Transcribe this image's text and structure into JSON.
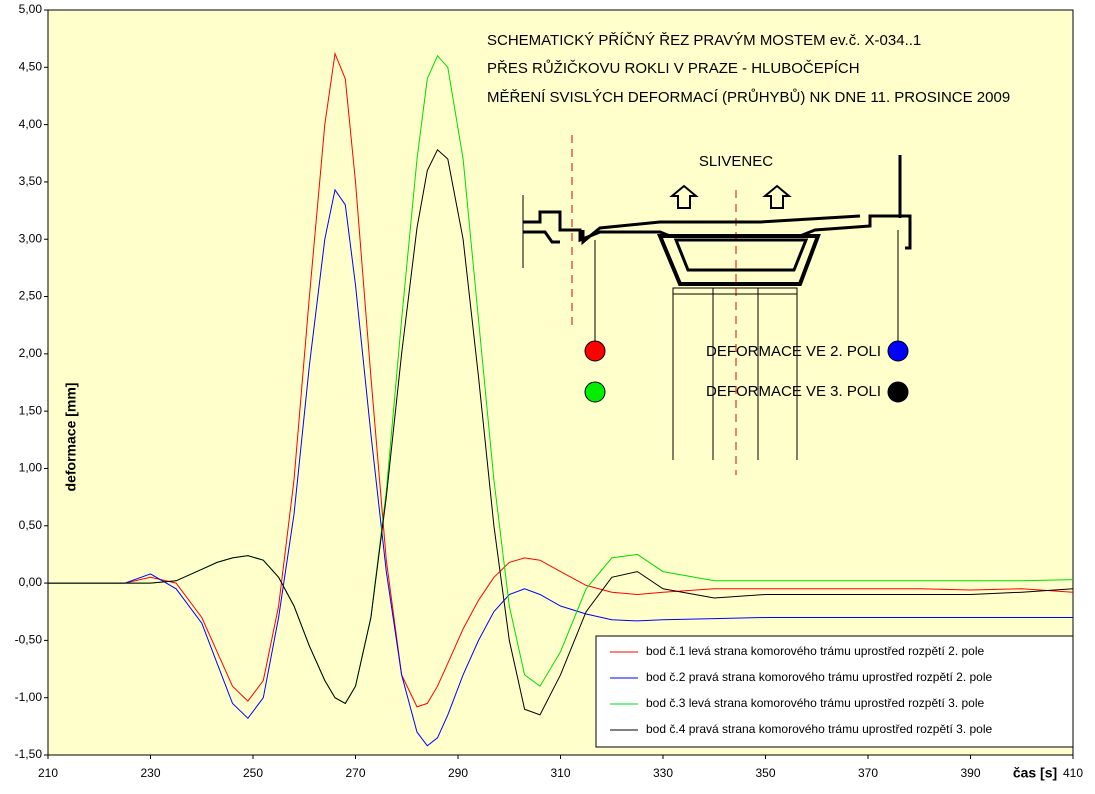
{
  "chart_data": {
    "type": "line",
    "title": [
      "SCHEMATICKÝ PŘÍČNÝ ŘEZ PRAVÝM MOSTEM ev.č. X-034..1",
      "PŘES RŮŽIČKOVU ROKLI V PRAZE - HLUBOČEPÍCH",
      "MĚŘENÍ SVISLÝCH DEFORMACÍ (PRŮHYBŮ) NK DNE 11. PROSINCE 2009"
    ],
    "annotations": [
      "SLIVENEC",
      "DEFORMACE VE 2. POLI",
      "DEFORMACE VE 3. POLI"
    ],
    "x_label": "čas [s]",
    "y_label": "deformace [mm]",
    "xlim": [
      210,
      410
    ],
    "xticks": [
      210,
      230,
      250,
      270,
      290,
      310,
      330,
      350,
      370,
      390,
      410
    ],
    "ylim": [
      -1.5,
      5
    ],
    "yticks": [
      {
        "value": -1.5,
        "label": "-1,50"
      },
      {
        "value": -1,
        "label": "-1,00"
      },
      {
        "value": -0.5,
        "label": "-0,50"
      },
      {
        "value": 0,
        "label": "0,00"
      },
      {
        "value": 0.5,
        "label": "0,50"
      },
      {
        "value": 1,
        "label": "1,00"
      },
      {
        "value": 1.5,
        "label": "1,50"
      },
      {
        "value": 2,
        "label": "2,00"
      },
      {
        "value": 2.5,
        "label": "2,50"
      },
      {
        "value": 3,
        "label": "3,00"
      },
      {
        "value": 3.5,
        "label": "3,50"
      },
      {
        "value": 4,
        "label": "4,00"
      },
      {
        "value": 4.5,
        "label": "4,50"
      },
      {
        "value": 5,
        "label": "5,00"
      }
    ],
    "grid": false,
    "legend": "lower right",
    "background": "#ffffcc",
    "x": [
      210,
      215,
      220,
      225,
      230,
      235,
      240,
      243,
      246,
      249,
      252,
      255,
      258,
      261,
      264,
      266,
      268,
      270,
      273,
      276,
      279,
      282,
      284,
      286,
      288,
      291,
      294,
      297,
      300,
      303,
      306,
      310,
      315,
      320,
      325,
      330,
      340,
      350,
      360,
      370,
      380,
      390,
      400,
      410
    ],
    "series": [
      {
        "name": "bod č.1 levá strana komorového trámu uprostřed rozpětí 2. pole",
        "color": "#ff0000",
        "values": [
          0,
          0,
          0,
          0,
          0.05,
          0,
          -0.3,
          -0.6,
          -0.9,
          -1.03,
          -0.85,
          -0.2,
          0.9,
          2.5,
          4.0,
          4.62,
          4.4,
          3.5,
          1.8,
          0.2,
          -0.8,
          -1.08,
          -1.05,
          -0.9,
          -0.7,
          -0.4,
          -0.15,
          0.05,
          0.18,
          0.22,
          0.2,
          0.1,
          -0.02,
          -0.08,
          -0.1,
          -0.08,
          -0.05,
          -0.05,
          -0.05,
          -0.05,
          -0.05,
          -0.06,
          -0.05,
          -0.08
        ]
      },
      {
        "name": "bod č.2 pravá strana komorového trámu uprostřed rozpětí 2. pole",
        "color": "#0000ff",
        "values": [
          0,
          0,
          0,
          0,
          0.08,
          -0.05,
          -0.35,
          -0.7,
          -1.05,
          -1.18,
          -1.0,
          -0.3,
          0.6,
          1.9,
          3.0,
          3.43,
          3.3,
          2.6,
          1.3,
          0.1,
          -0.8,
          -1.3,
          -1.42,
          -1.35,
          -1.15,
          -0.8,
          -0.5,
          -0.25,
          -0.1,
          -0.05,
          -0.1,
          -0.2,
          -0.27,
          -0.32,
          -0.33,
          -0.32,
          -0.31,
          -0.3,
          -0.3,
          -0.3,
          -0.3,
          -0.3,
          -0.3,
          -0.3
        ]
      },
      {
        "name": "bod č.3 levá strana komorového trámu uprostřed rozpětí 3. pole",
        "color": "#00dd00",
        "values": [
          0,
          0,
          0,
          0,
          0,
          0.02,
          0.12,
          0.18,
          0.22,
          0.24,
          0.2,
          0.05,
          -0.2,
          -0.55,
          -0.85,
          -1.0,
          -1.05,
          -0.9,
          -0.3,
          0.8,
          2.3,
          3.7,
          4.4,
          4.6,
          4.5,
          3.7,
          2.3,
          0.9,
          -0.2,
          -0.8,
          -0.9,
          -0.6,
          -0.05,
          0.22,
          0.25,
          0.1,
          0.02,
          0.02,
          0.02,
          0.02,
          0.02,
          0.02,
          0.02,
          0.03
        ]
      },
      {
        "name": "bod č.4 pravá strana komorového trámu uprostřed rozpětí 3. pole",
        "color": "#000000",
        "values": [
          0,
          0,
          0,
          0,
          0,
          0.02,
          0.12,
          0.18,
          0.22,
          0.24,
          0.2,
          0.05,
          -0.2,
          -0.55,
          -0.85,
          -1.0,
          -1.05,
          -0.9,
          -0.3,
          0.75,
          2.0,
          3.1,
          3.6,
          3.78,
          3.7,
          3.0,
          1.8,
          0.5,
          -0.5,
          -1.1,
          -1.15,
          -0.8,
          -0.25,
          0.05,
          0.1,
          -0.05,
          -0.13,
          -0.1,
          -0.1,
          -0.1,
          -0.1,
          -0.1,
          -0.08,
          -0.05
        ]
      }
    ]
  }
}
